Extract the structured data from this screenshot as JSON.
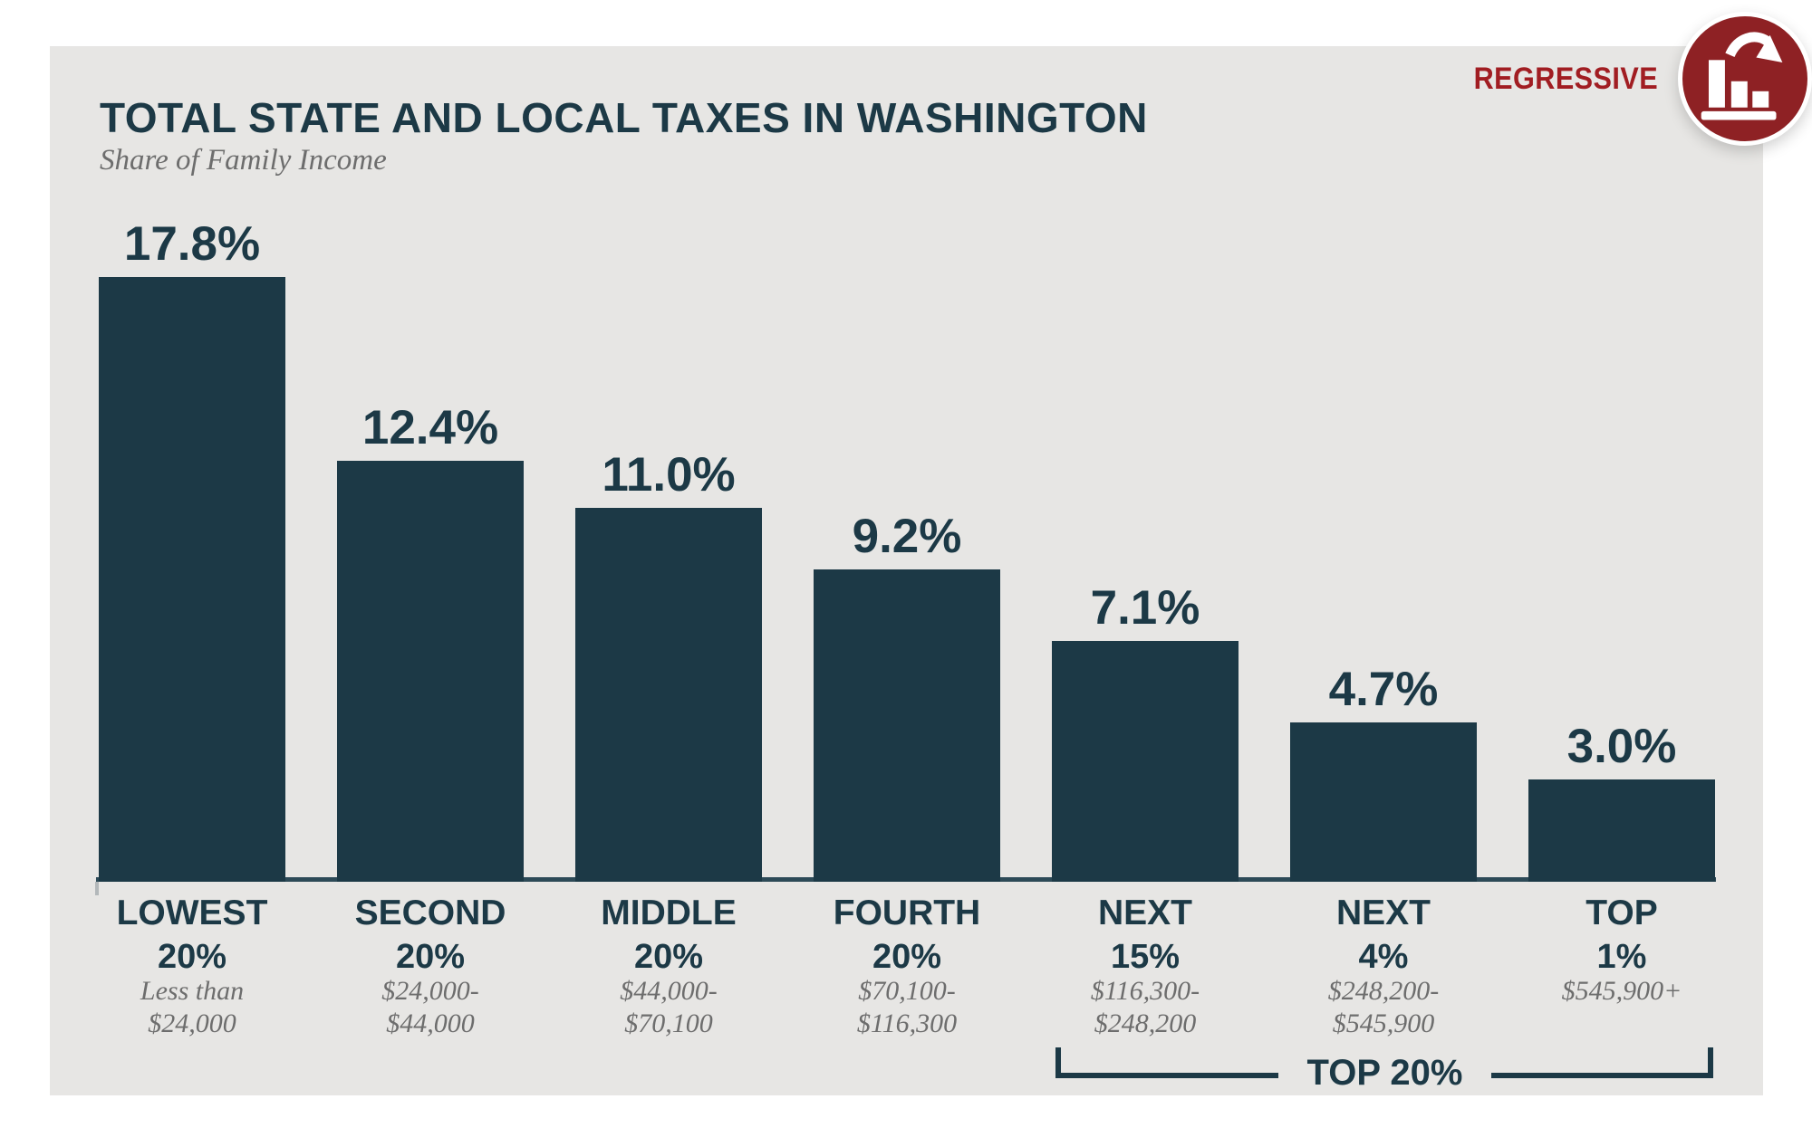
{
  "header": {
    "title": "TOTAL STATE AND LOCAL TAXES IN WASHINGTON",
    "subtitle": "Share of Family Income",
    "tag_label": "REGRESSIVE"
  },
  "colors": {
    "bar": "#1c3946",
    "teal_text": "#1c3946",
    "panel_background": "#e7e6e4",
    "page_background": "#ffffff",
    "income_text": "#6d6d6d",
    "tag_red": "#a11d22",
    "badge_red": "#8e2124",
    "axis_line": "#2d4a57"
  },
  "icons": {
    "badge": "declining-bar-chart-icon"
  },
  "chart_data": {
    "type": "bar",
    "title": "TOTAL STATE AND LOCAL TAXES IN WASHINGTON",
    "subtitle": "Share of Family Income",
    "unit": "percent of family income",
    "ylim": [
      0,
      18
    ],
    "grid": false,
    "legend": "none",
    "value_labels_shown": true,
    "categories": [
      "LOWEST 20%",
      "SECOND 20%",
      "MIDDLE 20%",
      "FOURTH 20%",
      "NEXT 15%",
      "NEXT 4%",
      "TOP 1%"
    ],
    "values": [
      17.8,
      12.4,
      11.0,
      9.2,
      7.1,
      4.7,
      3.0
    ],
    "bars": [
      {
        "name": "LOWEST",
        "pct": "20%",
        "value": 17.8,
        "label": "17.8%",
        "income": [
          "Less than",
          "$24,000"
        ]
      },
      {
        "name": "SECOND",
        "pct": "20%",
        "value": 12.4,
        "label": "12.4%",
        "income": [
          "$24,000-",
          "$44,000"
        ]
      },
      {
        "name": "MIDDLE",
        "pct": "20%",
        "value": 11.0,
        "label": "11.0%",
        "income": [
          "$44,000-",
          "$70,100"
        ]
      },
      {
        "name": "FOURTH",
        "pct": "20%",
        "value": 9.2,
        "label": "9.2%",
        "income": [
          "$70,100-",
          "$116,300"
        ]
      },
      {
        "name": "NEXT",
        "pct": "15%",
        "value": 7.1,
        "label": "7.1%",
        "income": [
          "$116,300-",
          "$248,200"
        ]
      },
      {
        "name": "NEXT",
        "pct": "4%",
        "value": 4.7,
        "label": "4.7%",
        "income": [
          "$248,200-",
          "$545,900"
        ]
      },
      {
        "name": "TOP",
        "pct": "1%",
        "value": 3.0,
        "label": "3.0%",
        "income": [
          "$545,900+"
        ]
      }
    ],
    "annotation": {
      "label": "TOP 20%",
      "covers": [
        "NEXT 15%",
        "NEXT 4%",
        "TOP 1%"
      ]
    }
  }
}
